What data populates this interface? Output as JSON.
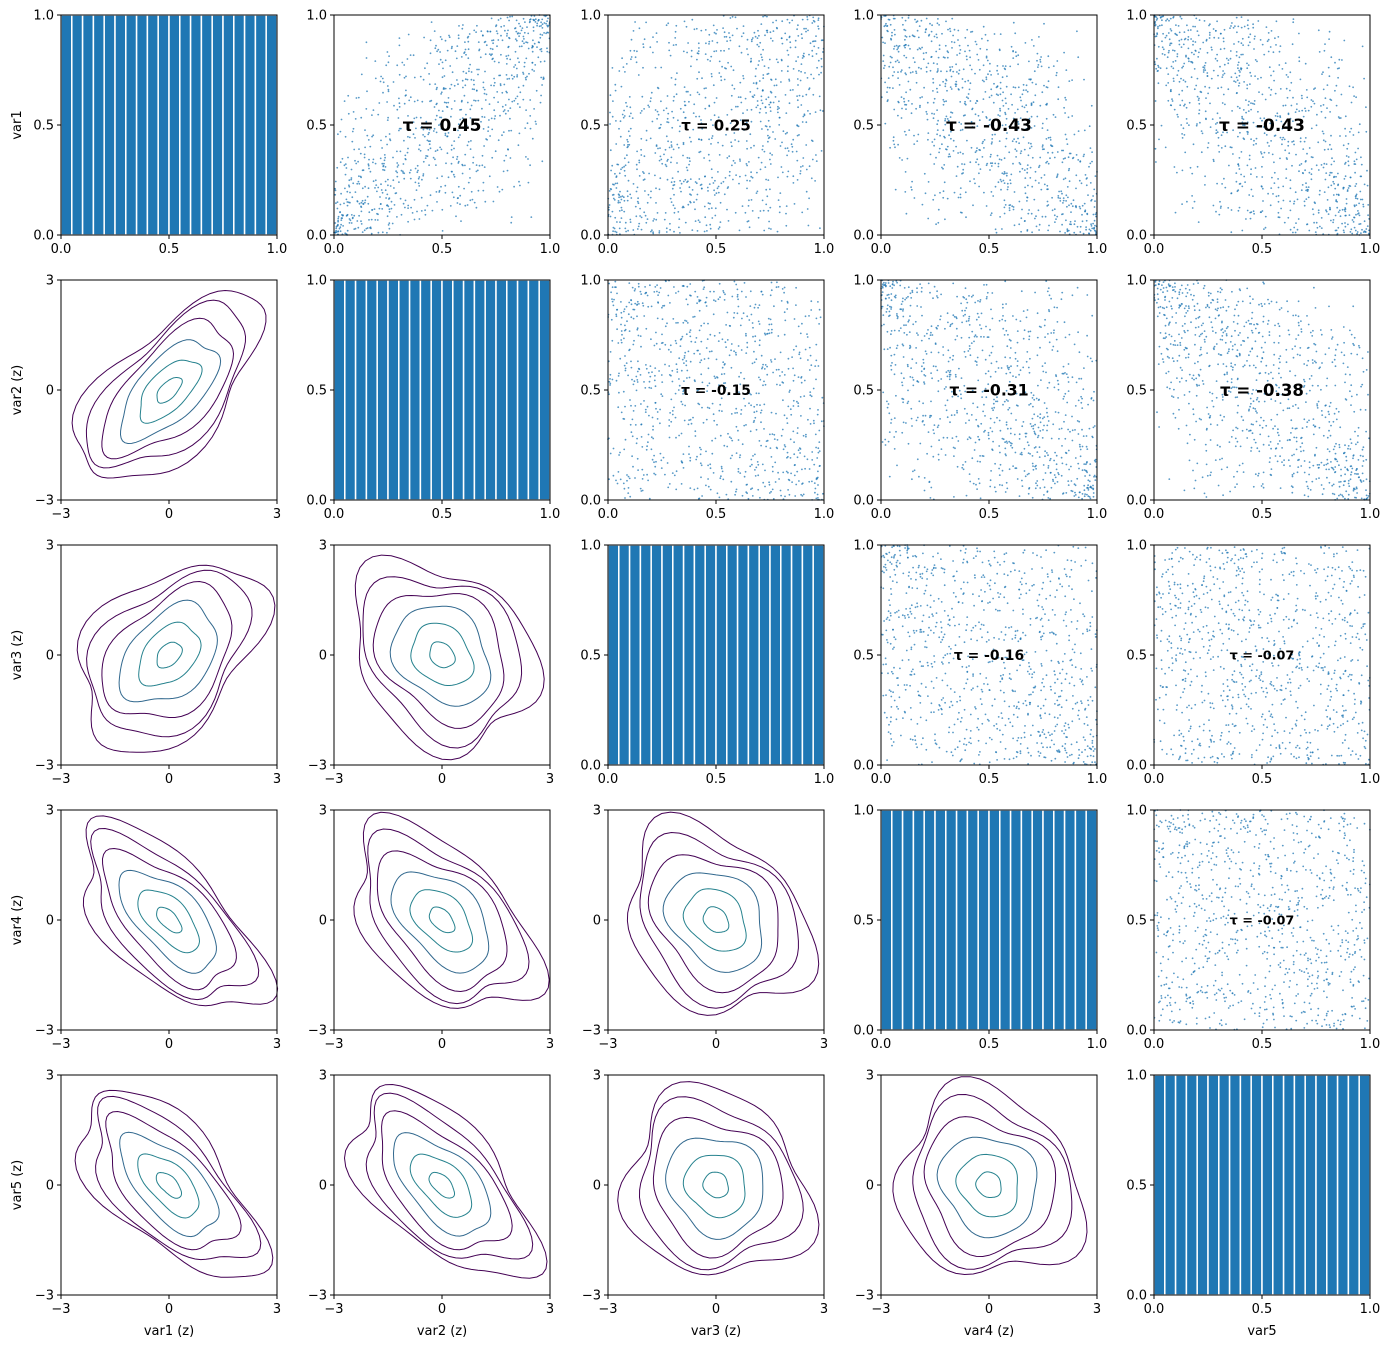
{
  "figure": {
    "variables": [
      "var1",
      "var2",
      "var3",
      "var4",
      "var5"
    ],
    "row_labels": [
      "var1",
      "var2 (z)",
      "var3 (z)",
      "var4 (z)",
      "var5 (z)"
    ],
    "col_labels": [
      "var1 (z)",
      "var2 (z)",
      "var3 (z)",
      "var4 (z)",
      "var5"
    ]
  },
  "colors": {
    "hist": "#1f77b4",
    "scatter": "#1f77b4",
    "contour": [
      "#440154",
      "#482677",
      "#3e4989",
      "#31688e",
      "#26828e"
    ]
  },
  "chart_data": {
    "type": "pairplot",
    "diagonal": {
      "type": "histogram",
      "bins": 20,
      "range": [
        0,
        1
      ],
      "density": [
        1,
        1,
        1,
        1,
        1,
        1,
        1,
        1,
        1,
        1,
        1,
        1,
        1,
        1,
        1,
        1,
        1,
        1,
        1,
        1
      ],
      "ylim": [
        0,
        1
      ],
      "xticks": [
        "0.0",
        "0.5",
        "1.0"
      ],
      "yticks": [
        "0.0",
        "0.5",
        "1.0"
      ]
    },
    "upper": {
      "type": "scatter",
      "xlim": [
        0,
        1
      ],
      "ylim": [
        0,
        1
      ],
      "xticks": [
        "0.0",
        "0.5",
        "1.0"
      ],
      "yticks": [
        "0.0",
        "0.5",
        "1.0"
      ],
      "pairs": [
        {
          "row": 0,
          "col": 1,
          "tau": 0.45,
          "label": "τ = 0.45"
        },
        {
          "row": 0,
          "col": 2,
          "tau": 0.25,
          "label": "τ = 0.25"
        },
        {
          "row": 0,
          "col": 3,
          "tau": -0.43,
          "label": "τ = -0.43"
        },
        {
          "row": 0,
          "col": 4,
          "tau": -0.43,
          "label": "τ = -0.43"
        },
        {
          "row": 1,
          "col": 2,
          "tau": -0.15,
          "label": "τ = -0.15"
        },
        {
          "row": 1,
          "col": 3,
          "tau": -0.31,
          "label": "τ = -0.31"
        },
        {
          "row": 1,
          "col": 4,
          "tau": -0.38,
          "label": "τ = -0.38"
        },
        {
          "row": 2,
          "col": 3,
          "tau": -0.16,
          "label": "τ = -0.16"
        },
        {
          "row": 2,
          "col": 4,
          "tau": -0.07,
          "label": "τ = -0.07"
        },
        {
          "row": 3,
          "col": 4,
          "tau": -0.07,
          "label": "τ = -0.07"
        }
      ]
    },
    "lower": {
      "type": "contour",
      "xlim": [
        -3,
        3
      ],
      "ylim": [
        -3,
        3
      ],
      "xticks": [
        "−3",
        "0",
        "3"
      ],
      "yticks": [
        "−3",
        "0",
        "3"
      ],
      "levels": 6,
      "pairs": [
        {
          "row": 1,
          "col": 0,
          "rho": 0.62
        },
        {
          "row": 2,
          "col": 0,
          "rho": 0.38
        },
        {
          "row": 2,
          "col": 1,
          "rho": -0.23
        },
        {
          "row": 3,
          "col": 0,
          "rho": -0.62
        },
        {
          "row": 3,
          "col": 1,
          "rho": -0.47
        },
        {
          "row": 3,
          "col": 2,
          "rho": -0.25
        },
        {
          "row": 4,
          "col": 0,
          "rho": -0.62
        },
        {
          "row": 4,
          "col": 1,
          "rho": -0.57
        },
        {
          "row": 4,
          "col": 2,
          "rho": -0.11
        },
        {
          "row": 4,
          "col": 3,
          "rho": -0.11
        }
      ]
    }
  }
}
